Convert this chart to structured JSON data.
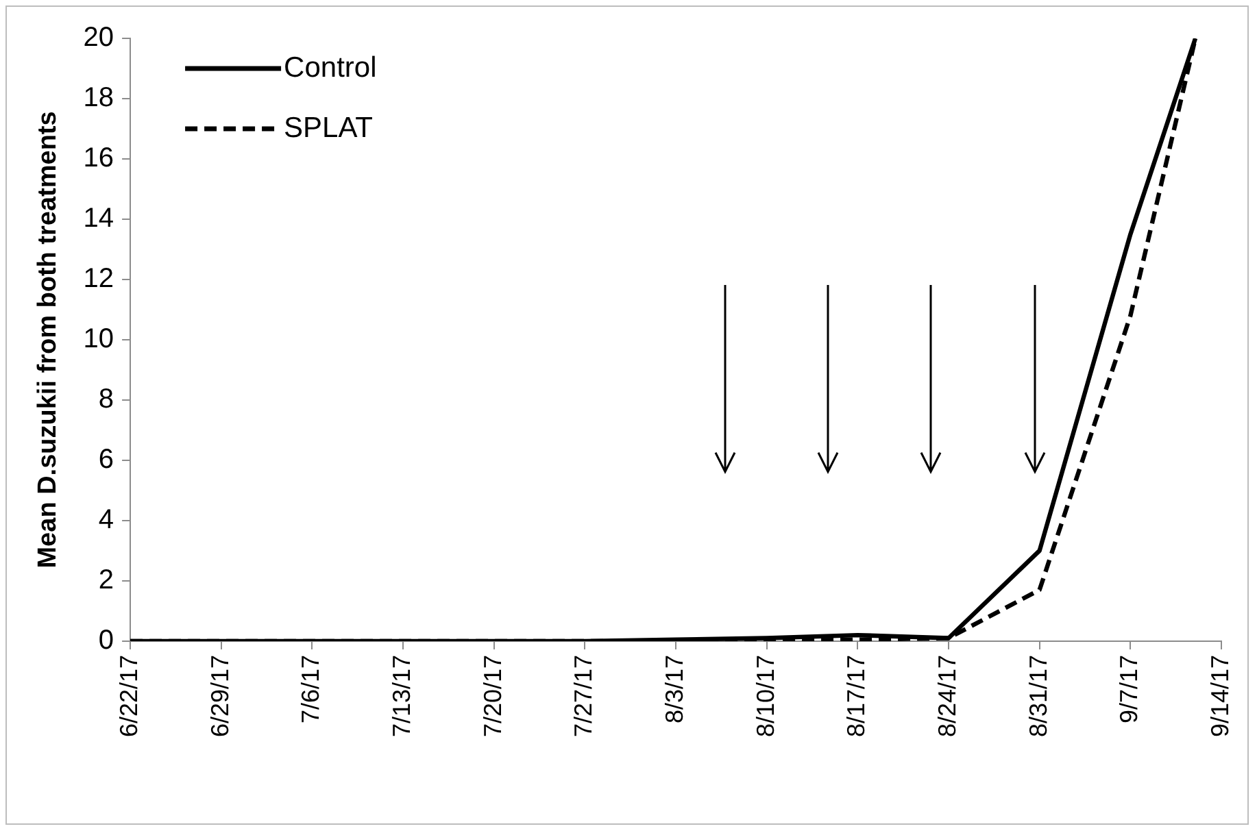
{
  "chart_data": {
    "type": "line",
    "ylabel": "Mean D.suzukii from both treatments",
    "x": [
      "--06-22",
      "--06-29",
      "--07-06",
      "--07-13",
      "--07-20",
      "--07-27",
      "--08-03",
      "--08-10",
      "--08-17",
      "--08-24",
      "--08-31",
      "--09-07",
      "--09-12"
    ],
    "series": [
      {
        "name": "Control",
        "color": "#000000",
        "line_style": "solid",
        "values": [
          0,
          0,
          0,
          0,
          0,
          0,
          0.05,
          0.1,
          0.2,
          0.1,
          3,
          13.5,
          20
        ]
      },
      {
        "name": "SPLAT",
        "color": "#000000",
        "line_style": "dashed",
        "values": [
          0,
          0,
          0,
          0,
          0,
          0,
          0,
          0,
          0.05,
          0.1,
          1.7,
          10.8,
          20
        ]
      }
    ],
    "xlim": [
      "--06-22",
      "--09-14"
    ],
    "xticks": [
      {
        "value": "--06-22",
        "label": "6/22/17"
      },
      {
        "value": "--06-29",
        "label": "6/29/17"
      },
      {
        "value": "--07-06",
        "label": "7/6/17"
      },
      {
        "value": "--07-13",
        "label": "7/13/17"
      },
      {
        "value": "--07-20",
        "label": "7/20/17"
      },
      {
        "value": "--07-27",
        "label": "7/27/17"
      },
      {
        "value": "--08-03",
        "label": "8/3/17"
      },
      {
        "value": "--08-10",
        "label": "8/10/17"
      },
      {
        "value": "--08-17",
        "label": "8/17/17"
      },
      {
        "value": "--08-24",
        "label": "8/24/17"
      },
      {
        "value": "--08-31",
        "label": "8/31/17"
      },
      {
        "value": "--09-07",
        "label": "9/7/17"
      },
      {
        "value": "--09-14",
        "label": "9/14/17"
      }
    ],
    "ylim": [
      0,
      20
    ],
    "yticks": [
      0,
      2,
      4,
      6,
      8,
      10,
      12,
      14,
      16,
      18,
      20
    ],
    "grid": false,
    "legend": "top left"
  }
}
